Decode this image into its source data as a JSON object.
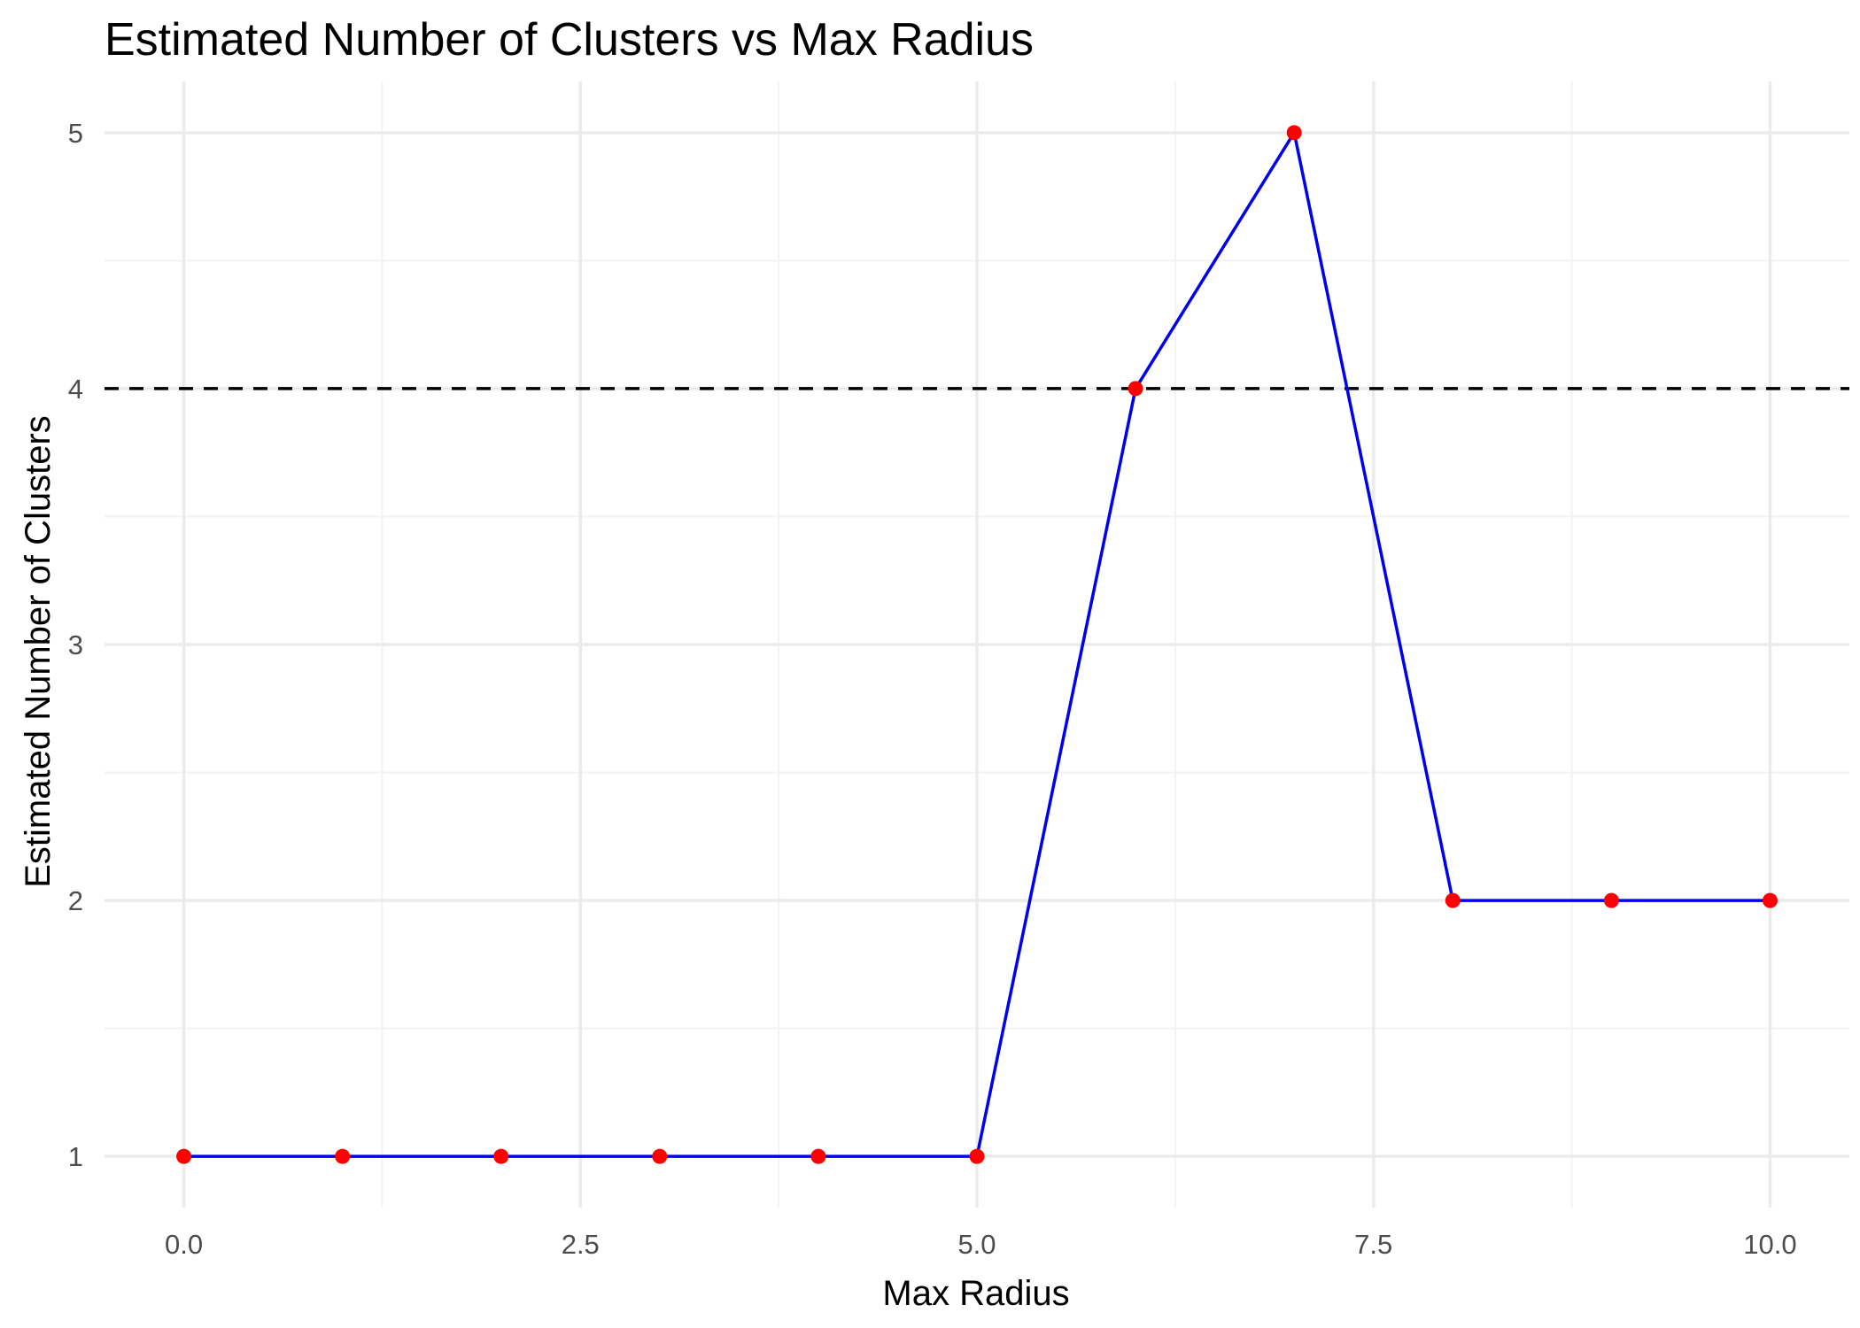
{
  "chart_data": {
    "type": "line",
    "title": "Estimated Number of Clusters vs Max Radius",
    "xlabel": "Max Radius",
    "ylabel": "Estimated Number of Clusters",
    "x": [
      0,
      1,
      2,
      3,
      4,
      5,
      6,
      7,
      8,
      9,
      10
    ],
    "series": [
      {
        "values": [
          1,
          1,
          1,
          1,
          1,
          1,
          4,
          5,
          2,
          2,
          2
        ],
        "line_color": "#0000ee",
        "point_color": "#ff0000"
      }
    ],
    "reference_line": {
      "y": 4,
      "style": "dashed",
      "color": "#000000"
    },
    "xlim": [
      -0.5,
      10.5
    ],
    "ylim": [
      0.8,
      5.2
    ],
    "x_ticks": [
      0,
      2.5,
      5,
      7.5,
      10
    ],
    "x_tick_labels": [
      "0.0",
      "2.5",
      "5.0",
      "7.5",
      "10.0"
    ],
    "y_ticks": [
      1,
      2,
      3,
      4,
      5
    ],
    "y_tick_labels": [
      "1",
      "2",
      "3",
      "4",
      "5"
    ],
    "grid": true,
    "background": "#ffffff"
  }
}
